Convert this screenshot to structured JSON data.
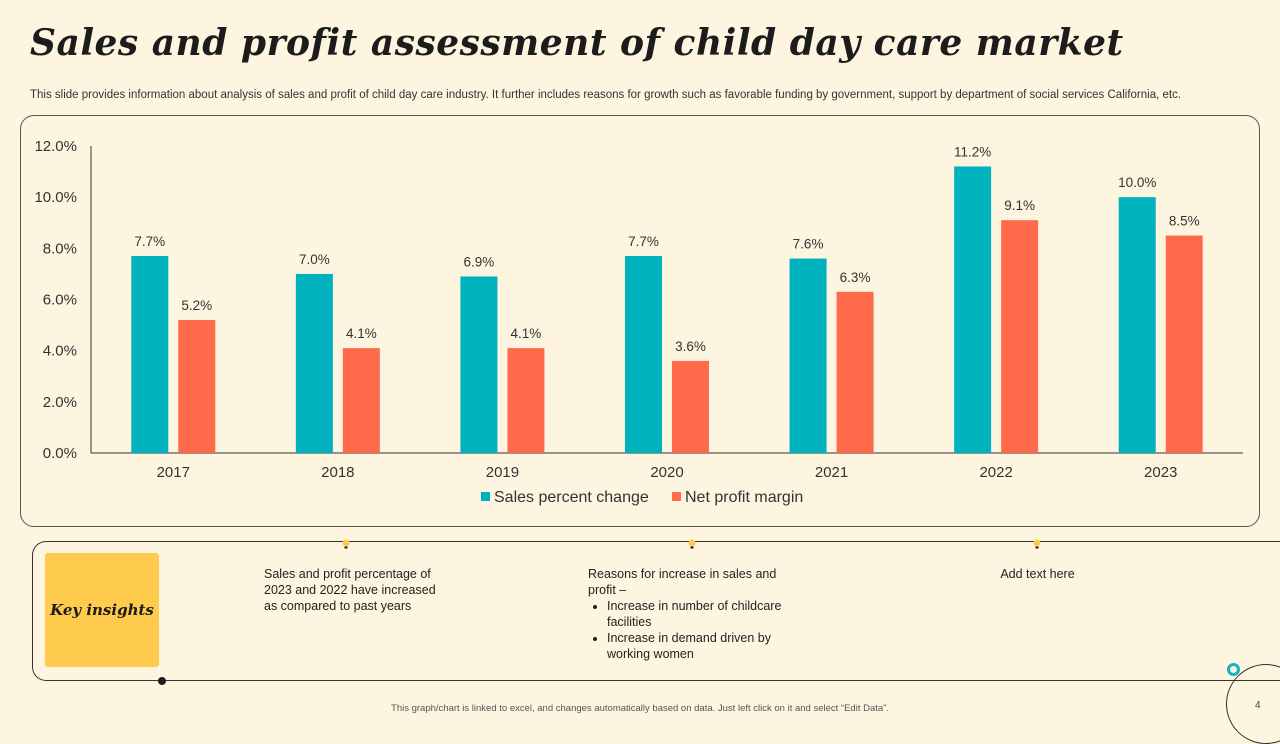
{
  "title": "Sales and profit assessment of child day care market",
  "subtitle": "This slide provides information about analysis of sales and profit of child day care industry. It further includes reasons for growth such as favorable funding by government, support by department of social services California, etc.",
  "chart_data": {
    "type": "bar",
    "categories": [
      "2017",
      "2018",
      "2019",
      "2020",
      "2021",
      "2022",
      "2023"
    ],
    "series": [
      {
        "name": "Sales percent change",
        "values": [
          7.7,
          7.0,
          6.9,
          7.7,
          7.6,
          11.2,
          10.0
        ],
        "labels": [
          "7.7%",
          "7.0%",
          "6.9%",
          "7.7%",
          "7.6%",
          "11.2%",
          "10.0%"
        ],
        "color": "#00B2BD"
      },
      {
        "name": "Net profit margin",
        "values": [
          5.2,
          4.1,
          4.1,
          3.6,
          6.3,
          9.1,
          8.5
        ],
        "labels": [
          "5.2%",
          "4.1%",
          "4.1%",
          "3.6%",
          "6.3%",
          "9.1%",
          "8.5%"
        ],
        "color": "#FF6B4A"
      }
    ],
    "ylim": [
      0,
      12
    ],
    "yticks": [
      "0.0%",
      "2.0%",
      "4.0%",
      "6.0%",
      "8.0%",
      "10.0%",
      "12.0%"
    ],
    "ytick_values": [
      0,
      2,
      4,
      6,
      8,
      10,
      12
    ],
    "legend_position": "bottom",
    "grid": false
  },
  "insights": {
    "key_label": "Key insights",
    "col1": "Sales and profit percentage of 2023 and 2022 have increased as compared to past years",
    "col2_intro": "Reasons for increase in sales and profit –",
    "col2_bullets": [
      "Increase in number of childcare facilities",
      "Increase in demand driven by working women"
    ],
    "col3": "Add text here",
    "bulb_color": "#FECB4D"
  },
  "footer": "This graph/chart is linked to excel, and changes automatically based on data. Just left click on it and select “Edit Data”.",
  "page_number": "4"
}
